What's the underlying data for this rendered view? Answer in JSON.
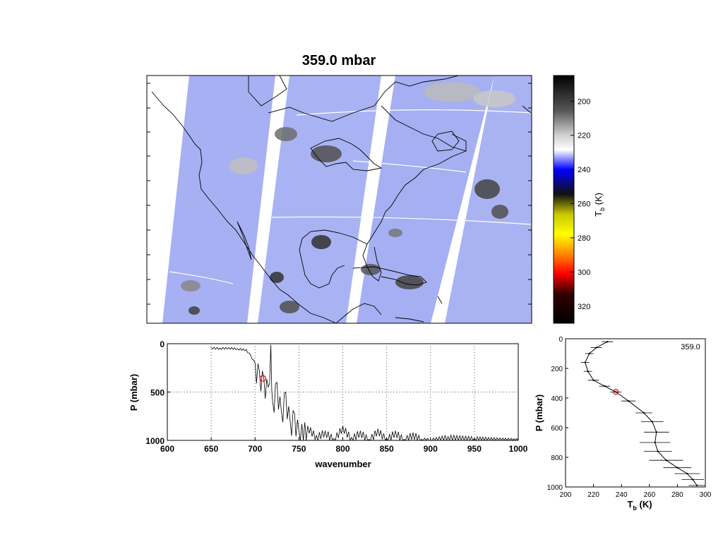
{
  "title": "359.0 mbar",
  "colorbar": {
    "label": "T_b (K)",
    "ticks": [
      200,
      220,
      240,
      260,
      280,
      300,
      320
    ],
    "range": [
      185,
      330
    ],
    "colors": {
      "cold": "#000000",
      "white": "#ffffff",
      "blue": "#0000ff",
      "yellow": "#e8e800",
      "orange": "#ff8800",
      "red": "#cc0000"
    }
  },
  "map": {
    "description_colors": {
      "background": "#9aa6f0",
      "swath_gap": "#ffffff",
      "coast": "#000000"
    }
  },
  "chart_data": [
    {
      "type": "line",
      "name": "spectrum-panel",
      "xlabel": "wavenumber",
      "ylabel": "P (mbar)",
      "xlim": [
        600,
        1000
      ],
      "ylim": [
        1000,
        0
      ],
      "xticks": [
        600,
        650,
        700,
        750,
        800,
        850,
        900,
        950,
        1000
      ],
      "yticks": [
        0,
        500,
        1000
      ],
      "grid": true,
      "marker": {
        "x": 709,
        "y": 359
      },
      "series": [
        {
          "x": [
            650,
            660,
            670,
            680,
            690,
            695,
            700,
            705,
            710,
            715,
            718,
            720,
            725,
            730,
            735,
            740,
            745,
            750,
            760,
            770,
            780,
            790,
            800,
            810,
            820,
            830,
            840,
            850,
            860,
            870,
            880,
            890,
            900,
            920,
            950,
            1000
          ],
          "y": [
            40,
            45,
            40,
            50,
            60,
            120,
            200,
            290,
            359,
            450,
            10,
            600,
            400,
            700,
            500,
            800,
            720,
            900,
            850,
            950,
            900,
            980,
            850,
            970,
            900,
            990,
            880,
            980,
            900,
            990,
            920,
            990,
            1000,
            960,
            980,
            1000
          ]
        }
      ]
    },
    {
      "type": "line",
      "name": "profile-panel",
      "label": "359.0",
      "xlabel": "T_b (K)",
      "ylabel": "P (mbar)",
      "xlim": [
        200,
        300
      ],
      "ylim": [
        1000,
        0
      ],
      "xticks": [
        200,
        220,
        240,
        260,
        280,
        300
      ],
      "yticks": [
        0,
        200,
        400,
        600,
        800,
        1000
      ],
      "marker": {
        "x": 236,
        "y": 359
      },
      "series": [
        {
          "x": [
            230,
            222,
            217,
            214,
            216,
            220,
            228,
            236,
            245,
            256,
            262,
            265,
            264,
            266,
            272,
            280,
            287,
            291,
            294
          ],
          "y": [
            20,
            60,
            100,
            160,
            220,
            280,
            320,
            359,
            420,
            500,
            560,
            630,
            700,
            760,
            820,
            870,
            910,
            950,
            990
          ],
          "err": [
            4,
            4,
            3,
            3,
            3,
            4,
            4,
            4,
            5,
            6,
            8,
            9,
            11,
            10,
            12,
            10,
            9,
            8,
            6
          ]
        }
      ]
    }
  ]
}
